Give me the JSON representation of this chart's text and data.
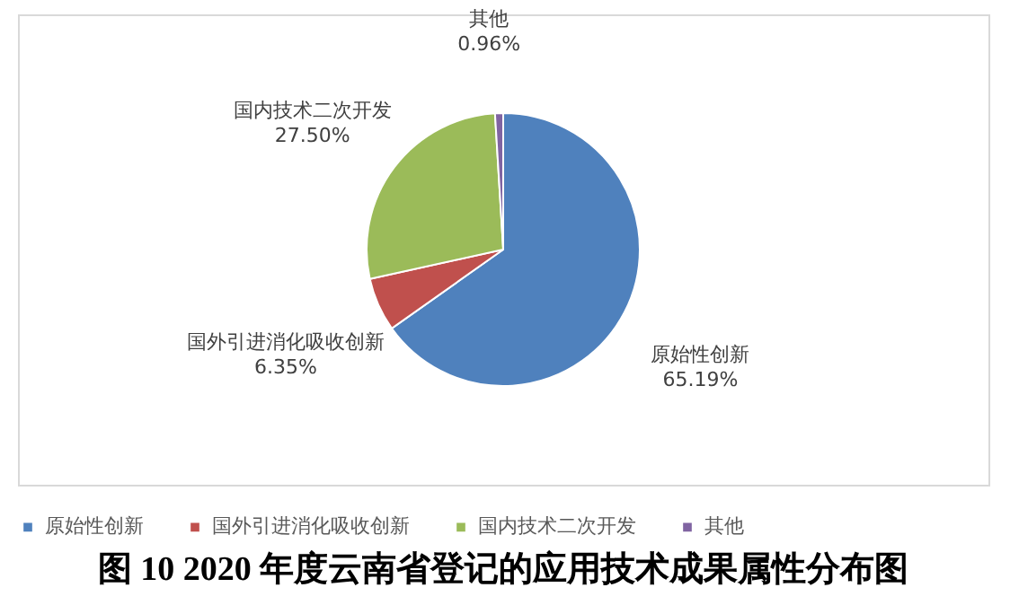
{
  "chart_data": {
    "type": "pie",
    "title": "图 10 2020 年度云南省登记的应用技术成果属性分布图",
    "categories": [
      "原始性创新",
      "国外引进消化吸收创新",
      "国内技术二次开发",
      "其他"
    ],
    "values": [
      65.19,
      6.35,
      27.5,
      0.96
    ],
    "value_labels": [
      "65.19%",
      "6.35%",
      "27.50%",
      "0.96%"
    ],
    "colors": [
      "#4f81bd",
      "#c0504d",
      "#9bbb59",
      "#8064a2"
    ],
    "legend": "bottom"
  }
}
